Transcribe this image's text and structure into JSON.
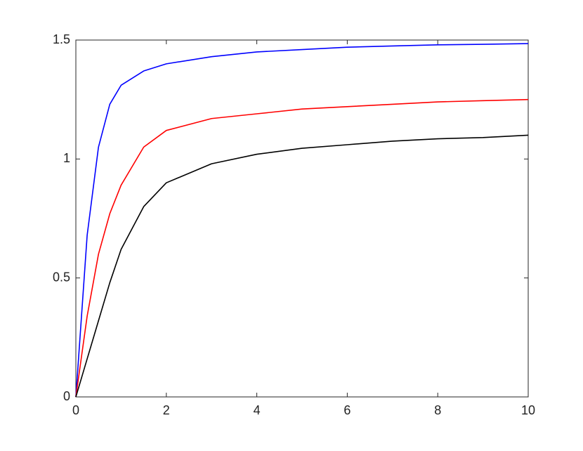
{
  "chart_data": {
    "type": "line",
    "x": [
      0,
      0.25,
      0.5,
      0.75,
      1,
      1.5,
      2,
      3,
      4,
      5,
      6,
      7,
      8,
      9,
      10
    ],
    "series": [
      {
        "color": "#0000ff",
        "values": [
          0,
          0.68,
          1.05,
          1.23,
          1.31,
          1.37,
          1.4,
          1.43,
          1.45,
          1.46,
          1.47,
          1.475,
          1.48,
          1.482,
          1.485
        ]
      },
      {
        "color": "#ff0000",
        "values": [
          0,
          0.34,
          0.6,
          0.77,
          0.89,
          1.05,
          1.12,
          1.17,
          1.19,
          1.21,
          1.22,
          1.23,
          1.24,
          1.245,
          1.25
        ]
      },
      {
        "color": "#000000",
        "values": [
          0,
          0.16,
          0.32,
          0.48,
          0.62,
          0.8,
          0.9,
          0.98,
          1.02,
          1.045,
          1.06,
          1.075,
          1.085,
          1.09,
          1.1
        ]
      }
    ],
    "xlim": [
      0,
      10
    ],
    "xticks": [
      0,
      2,
      4,
      6,
      8,
      10
    ],
    "ylim": [
      0,
      1.5
    ],
    "yticks": [
      0,
      0.5,
      1,
      1.5
    ],
    "grid": false
  }
}
